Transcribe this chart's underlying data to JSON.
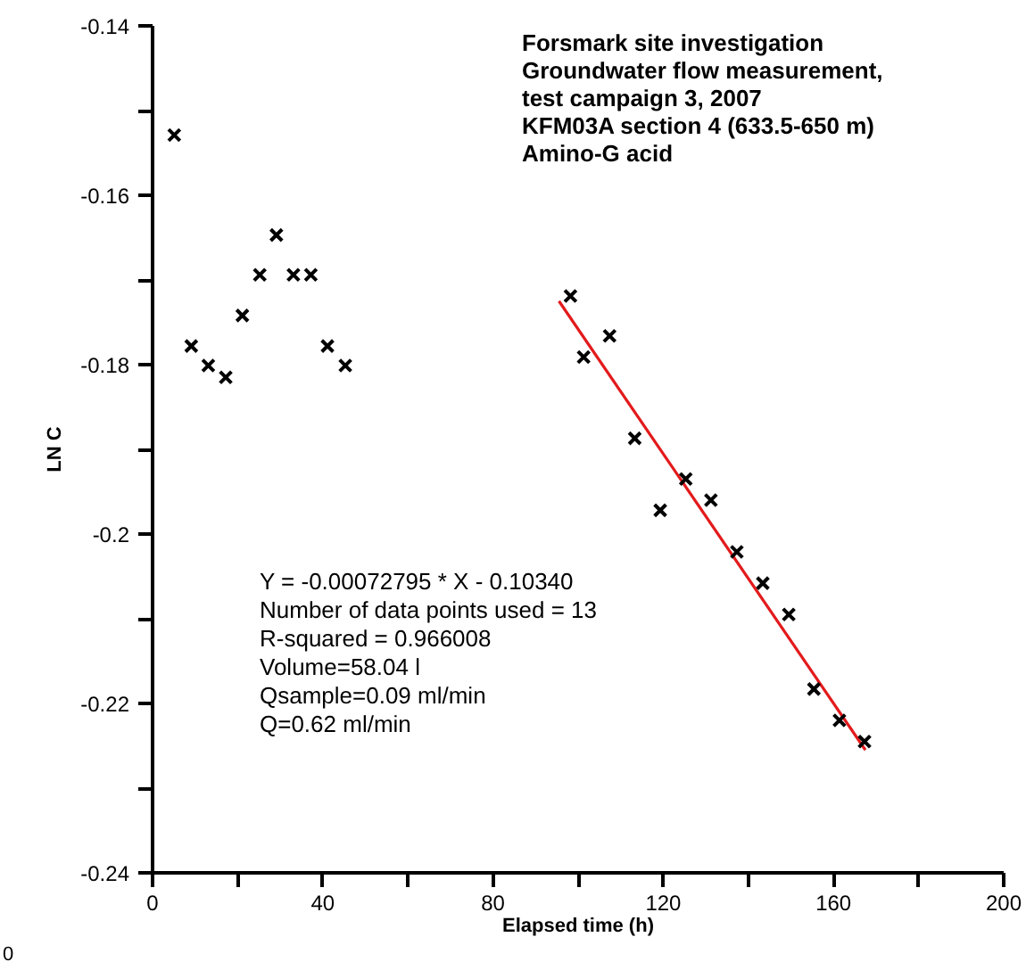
{
  "chart_data": {
    "type": "scatter",
    "title": "Forsmark site investigation\nGroundwater flow measurement,\ntest campaign 3, 2007\nKFM03A section 4 (633.5-650 m)\nAmino-G acid",
    "xlabel": "Elapsed time (h)",
    "ylabel": "LN C",
    "annotations": [
      "Y = -0.00072795 * X - 0.10340\nNumber of data points used = 13\nR-squared = 0.966008\nVolume=58.04 l\nQsample=0.09 ml/min\nQ=0.62 ml/min",
      "0"
    ],
    "marker": "cross",
    "grid": false,
    "xlim": [
      0,
      200
    ],
    "xticks": [
      0,
      {
        "value": 20,
        "label": null
      },
      40,
      {
        "value": 60,
        "label": null
      },
      80,
      {
        "value": 100,
        "label": null
      },
      120,
      {
        "value": 140,
        "label": null
      },
      160,
      {
        "value": 180,
        "label": null
      },
      200
    ],
    "ylim": [
      -0.24,
      -0.14
    ],
    "yticks": [
      {
        "value": -0.24,
        "label": "-0.24"
      },
      {
        "value": -0.23,
        "label": null
      },
      {
        "value": -0.22,
        "label": "-0.22"
      },
      {
        "value": -0.21,
        "label": null
      },
      {
        "value": -0.2,
        "label": "-0.2"
      },
      {
        "value": -0.19,
        "label": null
      },
      {
        "value": -0.18,
        "label": "-0.18"
      },
      {
        "value": -0.17,
        "label": null
      },
      {
        "value": -0.16,
        "label": "-0.16"
      },
      {
        "value": -0.15,
        "label": null
      },
      {
        "value": -0.14,
        "label": "-0.14"
      }
    ],
    "series": [
      {
        "color": "#000000",
        "x": [
          5.1,
          9.1,
          13.1,
          17.2,
          21.1,
          25.2,
          29.1,
          33.1,
          37.2,
          41.1,
          45.3,
          98.2,
          101.3,
          107.4,
          113.3,
          119.3,
          125.3,
          131.2,
          137.3,
          143.4,
          149.5,
          155.4,
          161.4,
          167.3
        ],
        "values": [
          -0.1529,
          -0.1778,
          -0.1801,
          -0.1815,
          -0.1742,
          -0.1694,
          -0.1647,
          -0.1694,
          -0.1694,
          -0.1778,
          -0.1801,
          -0.1719,
          -0.1791,
          -0.1766,
          -0.1887,
          -0.1972,
          -0.1935,
          -0.196,
          -0.2021,
          -0.2058,
          -0.2095,
          -0.2183,
          -0.222,
          -0.2245
        ]
      },
      {
        "type": "line",
        "color": "#e31a1c",
        "marker": "none",
        "x": [
          95.5,
          167.5
        ],
        "values": [
          -0.1725,
          -0.2255
        ]
      }
    ]
  }
}
